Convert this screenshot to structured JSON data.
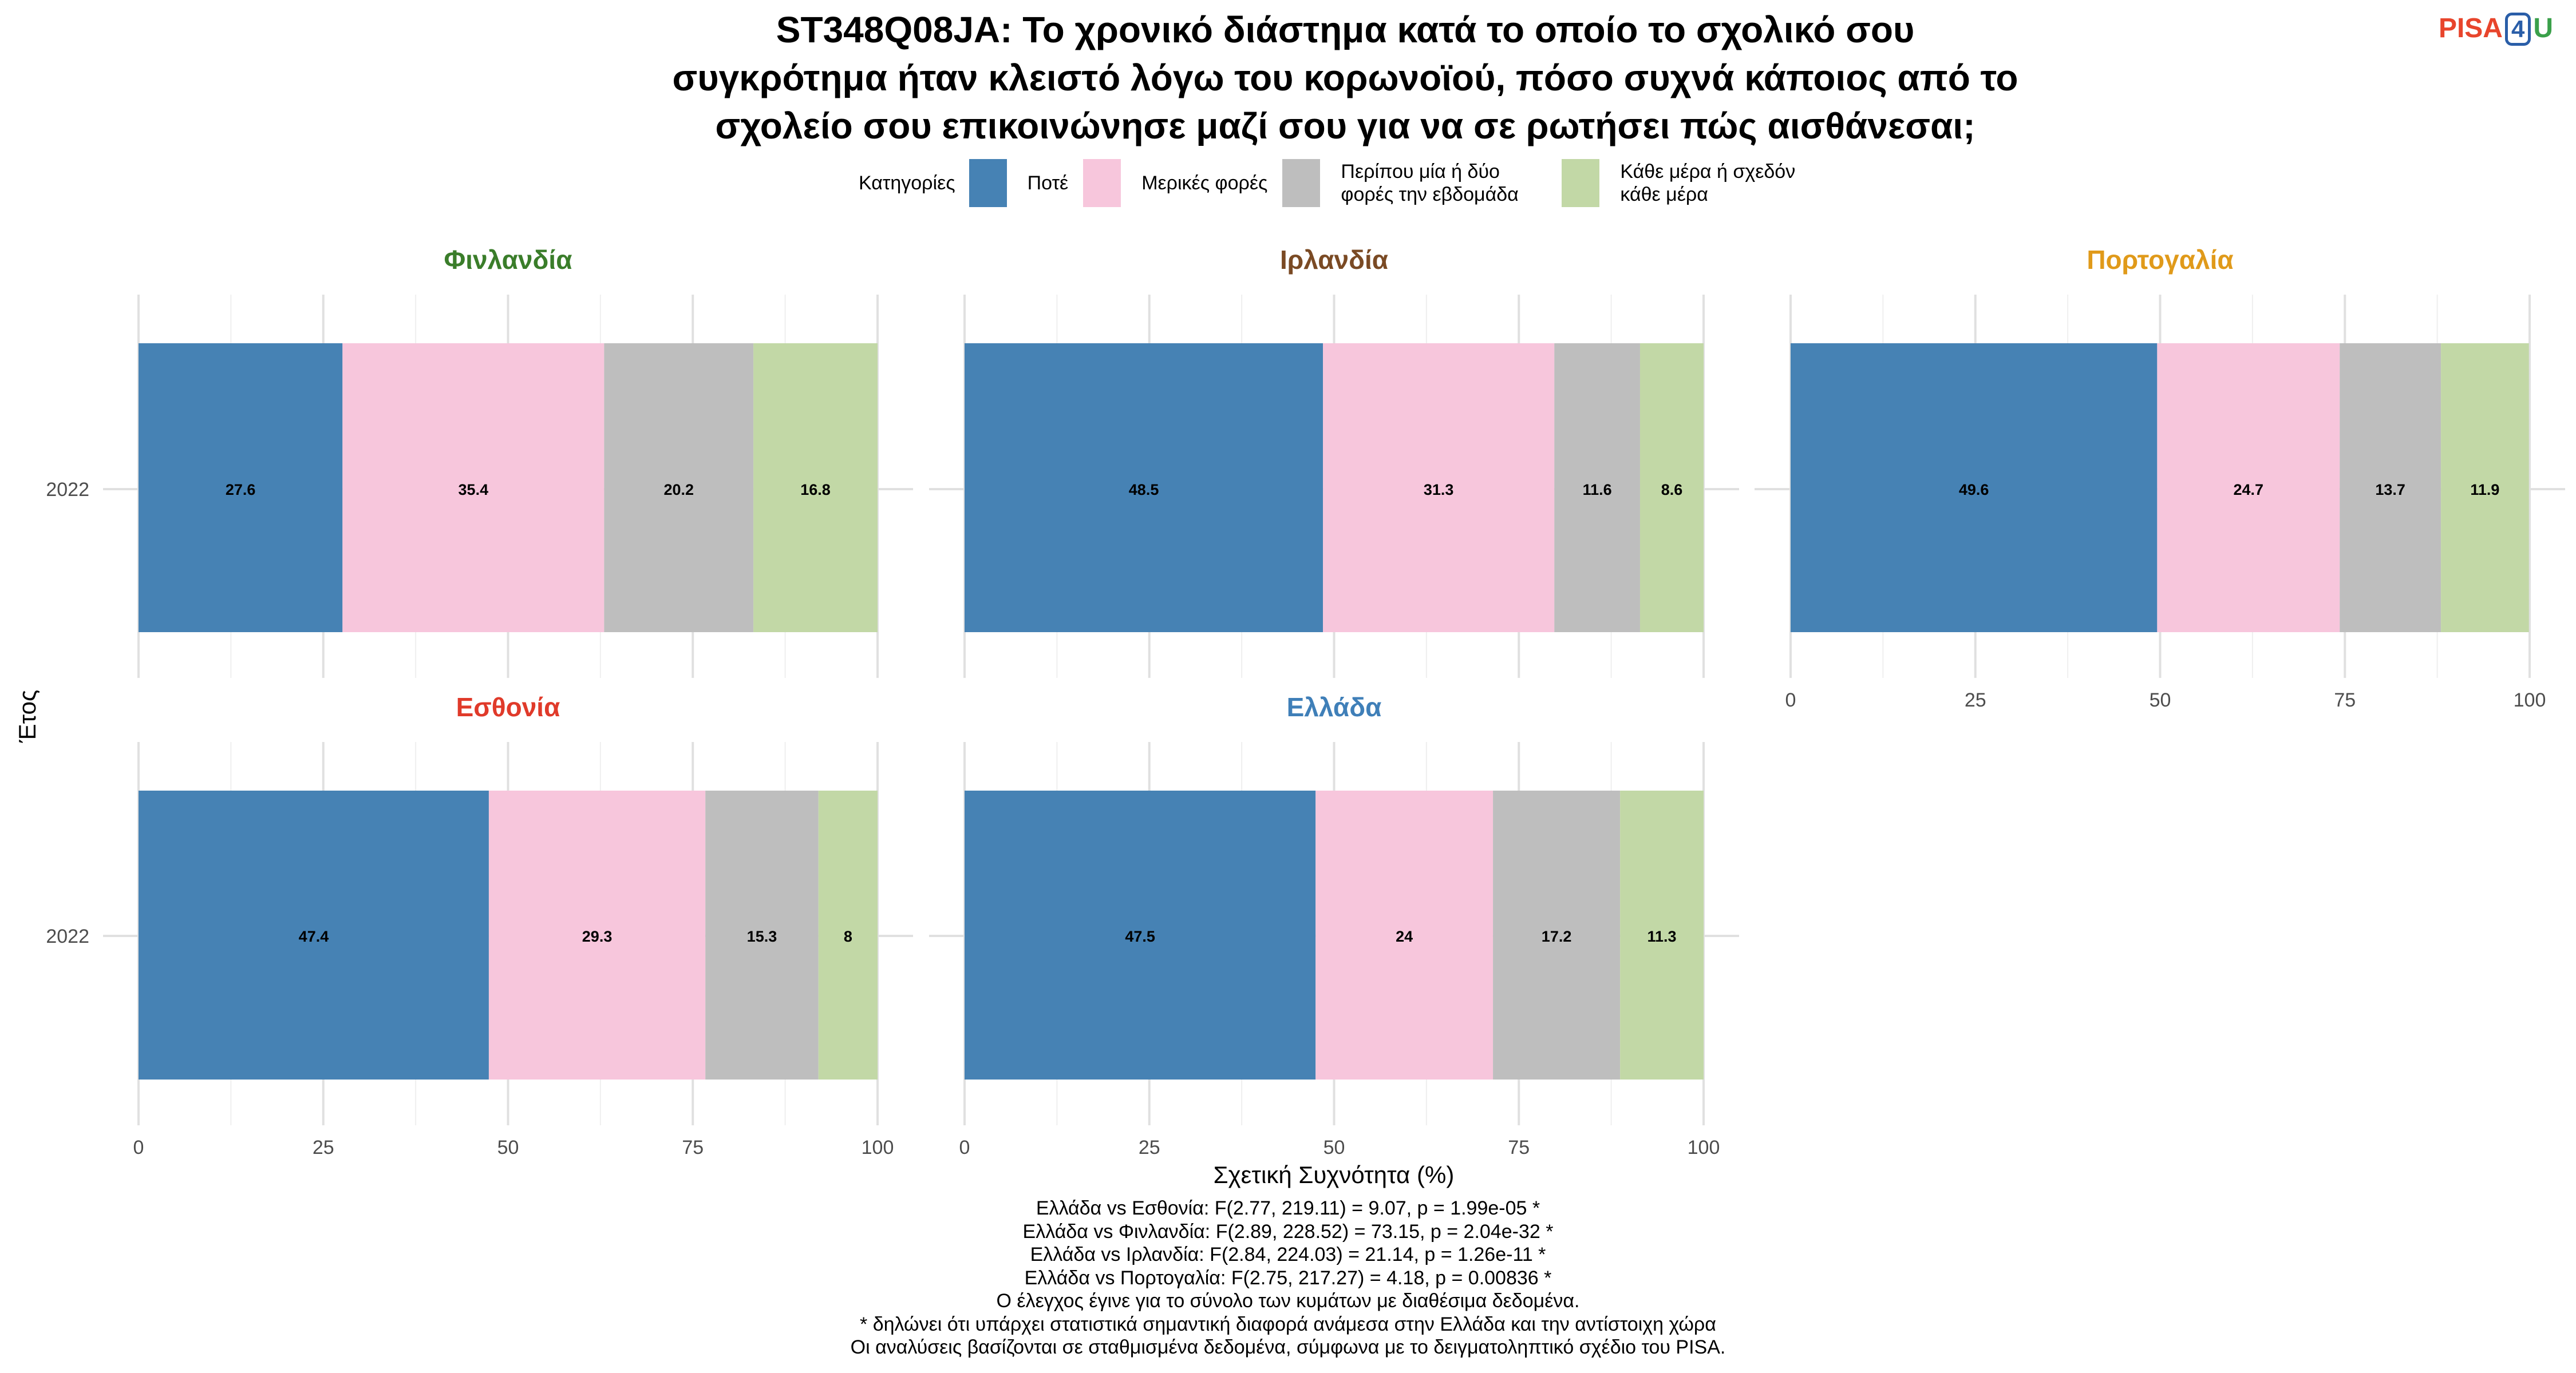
{
  "title_lines": [
    "ST348Q08JA: Το χρονικό διάστημα κατά το οποίο το σχολικό σου",
    "συγκρότημα ήταν κλειστό λόγω του κορωνοϊού, πόσο συχνά κάποιος από το",
    "σχολείο σου επικοινώνησε μαζί σου για να σε ρωτήσει πώς αισθάνεσαι;"
  ],
  "logo": {
    "part1": "PISA",
    "part2": "4",
    "part3": "U"
  },
  "legend": {
    "title": "Κατηγορίες",
    "items": [
      {
        "label": "Ποτέ",
        "color": "#4682B4"
      },
      {
        "label": "Μερικές φορές",
        "color": "#F7C6DC"
      },
      {
        "label": "Περίπου μία ή δύο φορές την εβδομάδα",
        "color": "#BEBEBE"
      },
      {
        "label": "Κάθε μέρα ή σχεδόν κάθε μέρα",
        "color": "#C2D8A6"
      }
    ]
  },
  "chart_data": {
    "type": "bar",
    "orientation": "horizontal",
    "stacked": true,
    "xlabel": "Σχετική Συχνότητα (%)",
    "ylabel": "Έτος",
    "xlim": [
      0,
      100
    ],
    "xticks": [
      "0",
      "25",
      "50",
      "75",
      "100"
    ],
    "category_names": [
      "Ποτέ",
      "Μερικές φορές",
      "Περίπου μία ή δύο φορές την εβδομάδα",
      "Κάθε μέρα ή σχεδόν κάθε μέρα"
    ],
    "colors": [
      "#4682B4",
      "#F7C6DC",
      "#BEBEBE",
      "#C2D8A6"
    ],
    "panels": [
      {
        "name": "Φινλανδία",
        "title_color": "#3A7D2A",
        "year": "2022",
        "values": [
          27.6,
          35.4,
          20.2,
          16.8
        ]
      },
      {
        "name": "Ιρλανδία",
        "title_color": "#7A4A24",
        "year": "2022",
        "values": [
          48.5,
          31.3,
          11.6,
          8.6
        ]
      },
      {
        "name": "Πορτογαλία",
        "title_color": "#E09A1A",
        "year": "2022",
        "values": [
          49.6,
          24.7,
          13.7,
          11.9
        ]
      },
      {
        "name": "Εσθονία",
        "title_color": "#E03A2A",
        "year": "2022",
        "values": [
          47.4,
          29.3,
          15.3,
          8
        ]
      },
      {
        "name": "Ελλάδα",
        "title_color": "#3F7FB8",
        "year": "2022",
        "values": [
          47.5,
          24,
          17.2,
          11.3
        ]
      }
    ]
  },
  "footer_lines": [
    "Ελλάδα vs Εσθονία: F(2.77, 219.11) = 9.07, p = 1.99e-05 *",
    "Ελλάδα vs Φινλανδία: F(2.89, 228.52) = 73.15, p = 2.04e-32 *",
    "Ελλάδα vs Ιρλανδία: F(2.84, 224.03) = 21.14, p = 1.26e-11 *",
    "Ελλάδα vs Πορτογαλία: F(2.75, 217.27) = 4.18, p = 0.00836 *",
    "Ο έλεγχος έγινε για το σύνολο των κυμάτων με διαθέσιμα δεδομένα.",
    "* δηλώνει ότι υπάρχει στατιστικά σημαντική διαφορά ανάμεσα στην Ελλάδα και την αντίστοιχη χώρα",
    "Οι αναλύσεις βασίζονται σε σταθμισμένα δεδομένα, σύμφωνα με το δειγματοληπτικό σχέδιο του PISA."
  ]
}
